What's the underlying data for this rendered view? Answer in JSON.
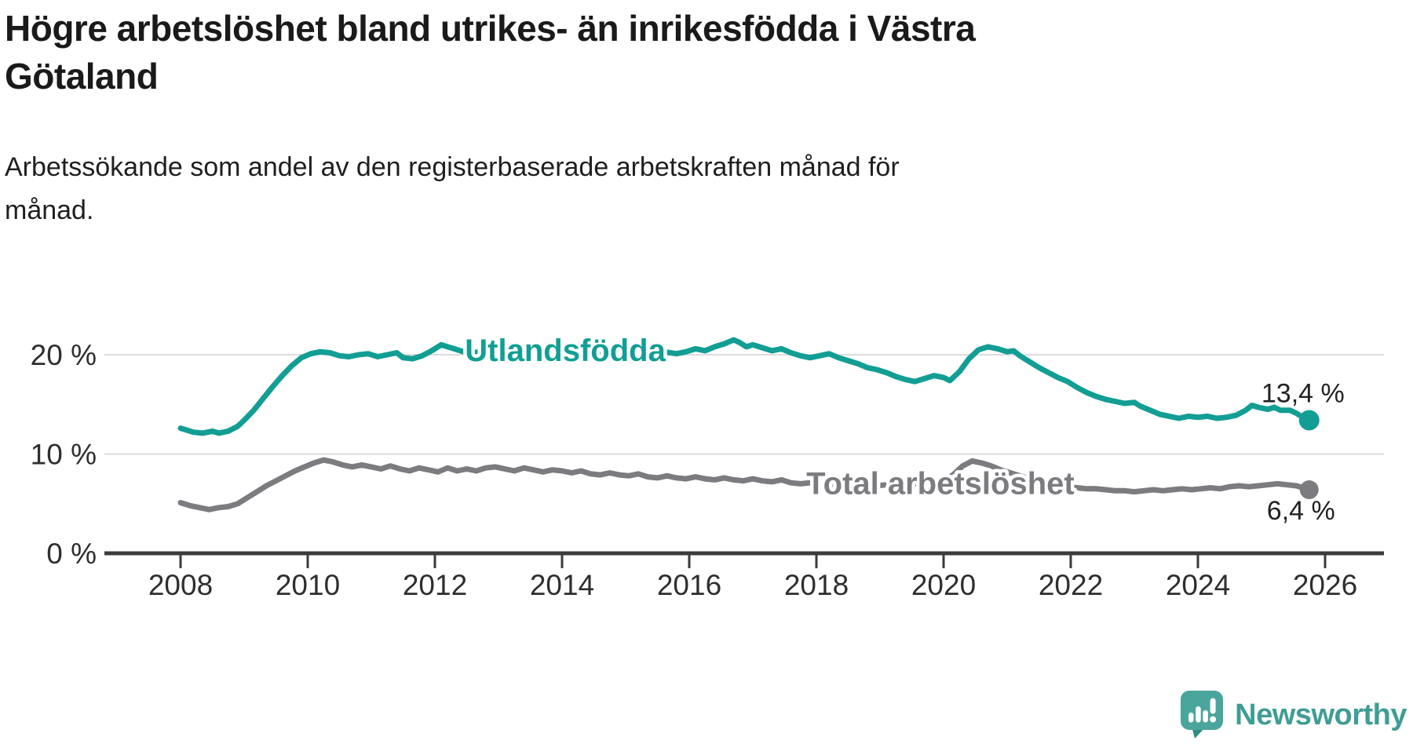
{
  "header": {
    "title_lines": [
      "Högre arbetslöshet bland utrikes- än inrikesfödda i Västra",
      "Götaland"
    ],
    "subtitle_lines": [
      "Arbetssökande som andel av den registerbaserade arbetskraften månad för",
      "månad."
    ]
  },
  "colors": {
    "teal": "#129e94",
    "gray": "#7c7c80",
    "grid": "#dcdcdc",
    "axis": "#3b3b3b",
    "tick_label": "#2e2e2e",
    "value_label": "#222222",
    "logo_body": "#4aa59c",
    "logo_tail": "#2f8d84",
    "logo_text": "#3f9d94"
  },
  "chart_data": {
    "type": "line",
    "title": "Högre arbetslöshet bland utrikes- än inrikesfödda i Västra Götaland",
    "subtitle": "Arbetssökande som andel av den registerbaserade arbetskraften månad för månad.",
    "xlabel": "",
    "ylabel": "",
    "grid": "horizontal",
    "legend_position": "inline-labels",
    "x_axis": {
      "ticks": [
        2008,
        2010,
        2012,
        2014,
        2016,
        2018,
        2020,
        2022,
        2024,
        2026
      ],
      "range": [
        2007.6,
        2026.9
      ]
    },
    "y_axis": {
      "ticks": [
        0,
        10,
        20
      ],
      "tick_labels": [
        "0 %",
        "10 %",
        "20 %"
      ],
      "unit": "%",
      "range": [
        0,
        29.5
      ]
    },
    "series": [
      {
        "name": "Utlandsfödda",
        "color": "#129e94",
        "end_label": "13,4 %",
        "end_value": 13.4,
        "label_anchor": [
          2014.05,
          20.3
        ],
        "points": [
          [
            2008.0,
            12.6
          ],
          [
            2008.1,
            12.4
          ],
          [
            2008.2,
            12.2
          ],
          [
            2008.35,
            12.1
          ],
          [
            2008.5,
            12.3
          ],
          [
            2008.6,
            12.1
          ],
          [
            2008.75,
            12.3
          ],
          [
            2008.9,
            12.8
          ],
          [
            2009.0,
            13.4
          ],
          [
            2009.15,
            14.4
          ],
          [
            2009.3,
            15.6
          ],
          [
            2009.45,
            16.8
          ],
          [
            2009.6,
            17.9
          ],
          [
            2009.75,
            18.9
          ],
          [
            2009.9,
            19.7
          ],
          [
            2010.05,
            20.1
          ],
          [
            2010.2,
            20.3
          ],
          [
            2010.35,
            20.2
          ],
          [
            2010.5,
            19.9
          ],
          [
            2010.65,
            19.8
          ],
          [
            2010.8,
            20.0
          ],
          [
            2010.95,
            20.1
          ],
          [
            2011.1,
            19.8
          ],
          [
            2011.25,
            20.0
          ],
          [
            2011.4,
            20.2
          ],
          [
            2011.5,
            19.7
          ],
          [
            2011.65,
            19.6
          ],
          [
            2011.8,
            19.9
          ],
          [
            2011.95,
            20.4
          ],
          [
            2012.1,
            21.0
          ],
          [
            2012.25,
            20.7
          ],
          [
            2012.4,
            20.4
          ],
          [
            2012.55,
            20.1
          ],
          [
            2012.7,
            20.3
          ],
          [
            2012.85,
            20.2
          ],
          [
            2013.0,
            20.5
          ],
          [
            2013.2,
            20.3
          ],
          [
            2013.4,
            20.1
          ],
          [
            2013.6,
            20.4
          ],
          [
            2013.8,
            20.2
          ],
          [
            2014.0,
            20.3
          ],
          [
            2014.2,
            20.1
          ],
          [
            2014.4,
            19.9
          ],
          [
            2014.6,
            20.0
          ],
          [
            2014.8,
            19.8
          ],
          [
            2015.0,
            20.0
          ],
          [
            2015.2,
            20.2
          ],
          [
            2015.4,
            20.0
          ],
          [
            2015.6,
            20.3
          ],
          [
            2015.8,
            20.1
          ],
          [
            2015.95,
            20.3
          ],
          [
            2016.1,
            20.6
          ],
          [
            2016.25,
            20.4
          ],
          [
            2016.4,
            20.8
          ],
          [
            2016.55,
            21.1
          ],
          [
            2016.7,
            21.5
          ],
          [
            2016.8,
            21.2
          ],
          [
            2016.9,
            20.8
          ],
          [
            2017.0,
            21.0
          ],
          [
            2017.15,
            20.7
          ],
          [
            2017.3,
            20.4
          ],
          [
            2017.45,
            20.6
          ],
          [
            2017.6,
            20.2
          ],
          [
            2017.75,
            19.9
          ],
          [
            2017.9,
            19.7
          ],
          [
            2018.05,
            19.9
          ],
          [
            2018.2,
            20.1
          ],
          [
            2018.35,
            19.7
          ],
          [
            2018.5,
            19.4
          ],
          [
            2018.65,
            19.1
          ],
          [
            2018.8,
            18.7
          ],
          [
            2018.95,
            18.5
          ],
          [
            2019.1,
            18.2
          ],
          [
            2019.25,
            17.8
          ],
          [
            2019.4,
            17.5
          ],
          [
            2019.55,
            17.3
          ],
          [
            2019.7,
            17.6
          ],
          [
            2019.85,
            17.9
          ],
          [
            2020.0,
            17.7
          ],
          [
            2020.1,
            17.4
          ],
          [
            2020.25,
            18.3
          ],
          [
            2020.4,
            19.6
          ],
          [
            2020.55,
            20.5
          ],
          [
            2020.7,
            20.8
          ],
          [
            2020.85,
            20.6
          ],
          [
            2021.0,
            20.3
          ],
          [
            2021.1,
            20.4
          ],
          [
            2021.2,
            19.9
          ],
          [
            2021.35,
            19.3
          ],
          [
            2021.5,
            18.7
          ],
          [
            2021.65,
            18.2
          ],
          [
            2021.8,
            17.7
          ],
          [
            2021.95,
            17.3
          ],
          [
            2022.1,
            16.7
          ],
          [
            2022.25,
            16.2
          ],
          [
            2022.4,
            15.8
          ],
          [
            2022.55,
            15.5
          ],
          [
            2022.7,
            15.3
          ],
          [
            2022.85,
            15.1
          ],
          [
            2023.0,
            15.2
          ],
          [
            2023.1,
            14.8
          ],
          [
            2023.25,
            14.4
          ],
          [
            2023.4,
            14.0
          ],
          [
            2023.55,
            13.8
          ],
          [
            2023.7,
            13.6
          ],
          [
            2023.85,
            13.8
          ],
          [
            2024.0,
            13.7
          ],
          [
            2024.15,
            13.8
          ],
          [
            2024.3,
            13.6
          ],
          [
            2024.45,
            13.7
          ],
          [
            2024.6,
            13.9
          ],
          [
            2024.75,
            14.4
          ],
          [
            2024.85,
            14.9
          ],
          [
            2024.95,
            14.7
          ],
          [
            2025.1,
            14.5
          ],
          [
            2025.2,
            14.7
          ],
          [
            2025.3,
            14.4
          ],
          [
            2025.45,
            14.4
          ],
          [
            2025.55,
            14.1
          ],
          [
            2025.65,
            13.7
          ],
          [
            2025.75,
            13.4
          ]
        ]
      },
      {
        "name": "Total arbetslöshet",
        "color": "#7c7c80",
        "end_label": "6,4 %",
        "end_value": 6.4,
        "label_anchor": [
          2019.95,
          6.9
        ],
        "points": [
          [
            2008.0,
            5.1
          ],
          [
            2008.15,
            4.8
          ],
          [
            2008.3,
            4.6
          ],
          [
            2008.45,
            4.4
          ],
          [
            2008.6,
            4.6
          ],
          [
            2008.75,
            4.7
          ],
          [
            2008.9,
            5.0
          ],
          [
            2009.05,
            5.6
          ],
          [
            2009.2,
            6.2
          ],
          [
            2009.35,
            6.8
          ],
          [
            2009.5,
            7.3
          ],
          [
            2009.65,
            7.8
          ],
          [
            2009.8,
            8.3
          ],
          [
            2009.95,
            8.7
          ],
          [
            2010.1,
            9.1
          ],
          [
            2010.25,
            9.4
          ],
          [
            2010.4,
            9.2
          ],
          [
            2010.55,
            8.9
          ],
          [
            2010.7,
            8.7
          ],
          [
            2010.85,
            8.9
          ],
          [
            2011.0,
            8.7
          ],
          [
            2011.15,
            8.5
          ],
          [
            2011.3,
            8.8
          ],
          [
            2011.45,
            8.5
          ],
          [
            2011.6,
            8.3
          ],
          [
            2011.75,
            8.6
          ],
          [
            2011.9,
            8.4
          ],
          [
            2012.05,
            8.2
          ],
          [
            2012.2,
            8.6
          ],
          [
            2012.35,
            8.3
          ],
          [
            2012.5,
            8.5
          ],
          [
            2012.65,
            8.3
          ],
          [
            2012.8,
            8.6
          ],
          [
            2012.95,
            8.7
          ],
          [
            2013.1,
            8.5
          ],
          [
            2013.25,
            8.3
          ],
          [
            2013.4,
            8.6
          ],
          [
            2013.55,
            8.4
          ],
          [
            2013.7,
            8.2
          ],
          [
            2013.85,
            8.4
          ],
          [
            2014.0,
            8.3
          ],
          [
            2014.15,
            8.1
          ],
          [
            2014.3,
            8.3
          ],
          [
            2014.45,
            8.0
          ],
          [
            2014.6,
            7.9
          ],
          [
            2014.75,
            8.1
          ],
          [
            2014.9,
            7.9
          ],
          [
            2015.05,
            7.8
          ],
          [
            2015.2,
            8.0
          ],
          [
            2015.35,
            7.7
          ],
          [
            2015.5,
            7.6
          ],
          [
            2015.65,
            7.8
          ],
          [
            2015.8,
            7.6
          ],
          [
            2015.95,
            7.5
          ],
          [
            2016.1,
            7.7
          ],
          [
            2016.25,
            7.5
          ],
          [
            2016.4,
            7.4
          ],
          [
            2016.55,
            7.6
          ],
          [
            2016.7,
            7.4
          ],
          [
            2016.85,
            7.3
          ],
          [
            2017.0,
            7.5
          ],
          [
            2017.15,
            7.3
          ],
          [
            2017.3,
            7.2
          ],
          [
            2017.45,
            7.4
          ],
          [
            2017.6,
            7.1
          ],
          [
            2017.75,
            7.0
          ],
          [
            2017.9,
            7.1
          ],
          [
            2018.05,
            7.0
          ],
          [
            2018.2,
            6.9
          ],
          [
            2018.35,
            7.0
          ],
          [
            2018.5,
            6.9
          ],
          [
            2018.65,
            6.8
          ],
          [
            2018.8,
            6.9
          ],
          [
            2018.95,
            6.8
          ],
          [
            2019.1,
            6.9
          ],
          [
            2019.25,
            7.0
          ],
          [
            2019.4,
            6.9
          ],
          [
            2019.55,
            7.0
          ],
          [
            2019.7,
            7.1
          ],
          [
            2019.85,
            7.2
          ],
          [
            2020.0,
            7.4
          ],
          [
            2020.15,
            7.9
          ],
          [
            2020.3,
            8.8
          ],
          [
            2020.45,
            9.3
          ],
          [
            2020.6,
            9.1
          ],
          [
            2020.75,
            8.8
          ],
          [
            2020.9,
            8.4
          ],
          [
            2021.05,
            8.1
          ],
          [
            2021.2,
            7.8
          ],
          [
            2021.35,
            7.5
          ],
          [
            2021.5,
            7.2
          ],
          [
            2021.65,
            7.0
          ],
          [
            2021.8,
            6.8
          ],
          [
            2021.95,
            6.7
          ],
          [
            2022.1,
            6.6
          ],
          [
            2022.25,
            6.5
          ],
          [
            2022.4,
            6.5
          ],
          [
            2022.55,
            6.4
          ],
          [
            2022.7,
            6.3
          ],
          [
            2022.85,
            6.3
          ],
          [
            2023.0,
            6.2
          ],
          [
            2023.15,
            6.3
          ],
          [
            2023.3,
            6.4
          ],
          [
            2023.45,
            6.3
          ],
          [
            2023.6,
            6.4
          ],
          [
            2023.75,
            6.5
          ],
          [
            2023.9,
            6.4
          ],
          [
            2024.05,
            6.5
          ],
          [
            2024.2,
            6.6
          ],
          [
            2024.35,
            6.5
          ],
          [
            2024.5,
            6.7
          ],
          [
            2024.65,
            6.8
          ],
          [
            2024.8,
            6.7
          ],
          [
            2024.95,
            6.8
          ],
          [
            2025.1,
            6.9
          ],
          [
            2025.25,
            7.0
          ],
          [
            2025.4,
            6.9
          ],
          [
            2025.55,
            6.8
          ],
          [
            2025.65,
            6.6
          ],
          [
            2025.75,
            6.4
          ]
        ]
      }
    ]
  },
  "logo": {
    "text": "Newsworthy"
  }
}
